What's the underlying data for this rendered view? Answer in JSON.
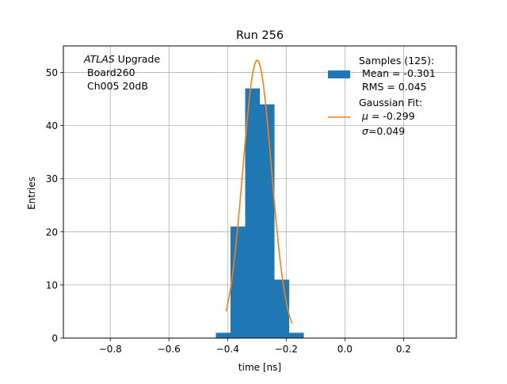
{
  "figure": {
    "title": "Run 256",
    "annotation": {
      "line1_italic": "ATLAS",
      "line1_rest": " Upgrade",
      "line2": "Board260",
      "line3": "Ch005 20dB"
    },
    "legend": {
      "hist_title": "Samples (125):",
      "hist_mean": "Mean = -0.301",
      "hist_rms": "RMS = 0.045",
      "fit_title": "Gaussian Fit:",
      "fit_mu_symbol": "μ",
      "fit_mu_text": " = -0.299",
      "fit_sigma_symbol": "σ",
      "fit_sigma_text": "=0.049"
    }
  },
  "chart_data": {
    "type": "bar",
    "title": "Run 256",
    "xlabel": "time [ns]",
    "ylabel": "Entries",
    "xlim": [
      -0.96,
      0.38
    ],
    "ylim": [
      0,
      55
    ],
    "xticks": [
      -0.8,
      -0.6,
      -0.4,
      -0.2,
      0.0,
      0.2
    ],
    "xtick_labels": [
      "−0.8",
      "−0.6",
      "−0.4",
      "−0.2",
      "0.0",
      "0.2"
    ],
    "yticks": [
      0,
      10,
      20,
      30,
      40,
      50
    ],
    "ytick_labels": [
      "0",
      "10",
      "20",
      "30",
      "40",
      "50"
    ],
    "grid": true,
    "legend_position": "upper right",
    "histogram": {
      "name": "Samples (125):",
      "color": "#1f77b4",
      "bin_edges": [
        -0.44,
        -0.39,
        -0.34,
        -0.29,
        -0.24,
        -0.19,
        -0.14
      ],
      "counts": [
        1,
        21,
        47,
        44,
        11,
        1
      ]
    },
    "fit": {
      "name": "Gaussian Fit:",
      "color": "#ff7f0e",
      "type": "gaussian",
      "amplitude": 52.3,
      "mu": -0.299,
      "sigma": 0.049,
      "x_range": [
        -0.405,
        -0.18
      ]
    }
  }
}
